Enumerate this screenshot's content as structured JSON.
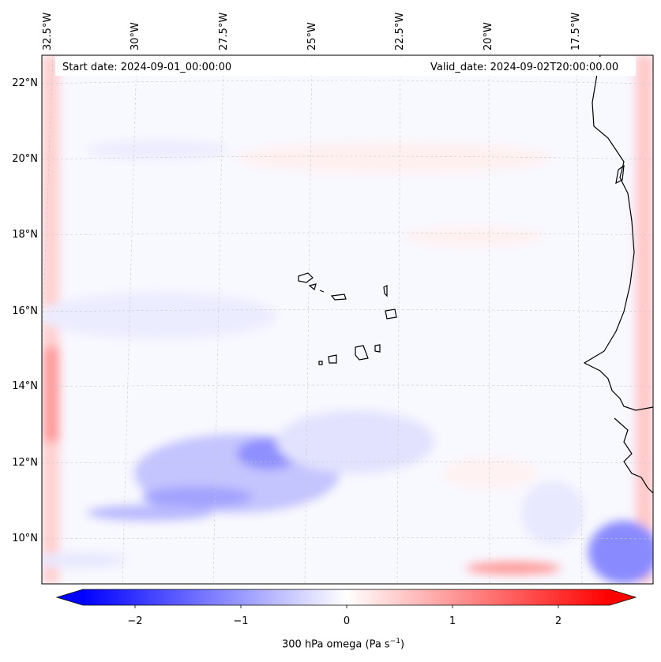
{
  "header": {
    "start_date": "Start date: 2024-09-01_00:00:00",
    "valid_date": "Valid_date: 2024-09-02T20:00:00.00"
  },
  "lon_labels": [
    "32.5°W",
    "30°W",
    "27.5°W",
    "25°W",
    "22.5°W",
    "20°W",
    "17.5°W"
  ],
  "lat_labels": [
    "22°N",
    "20°N",
    "18°N",
    "16°N",
    "14°N",
    "12°N",
    "10°N"
  ],
  "colorbar": {
    "ticks": [
      "−2",
      "−1",
      "0",
      "1",
      "2"
    ],
    "label": "300 hPa omega (Pa s",
    "label_sup": "−1",
    "label_end": ")",
    "neg_color": "#0000ff",
    "zero_color": "#ffffff",
    "pos_color": "#ff0000"
  }
}
